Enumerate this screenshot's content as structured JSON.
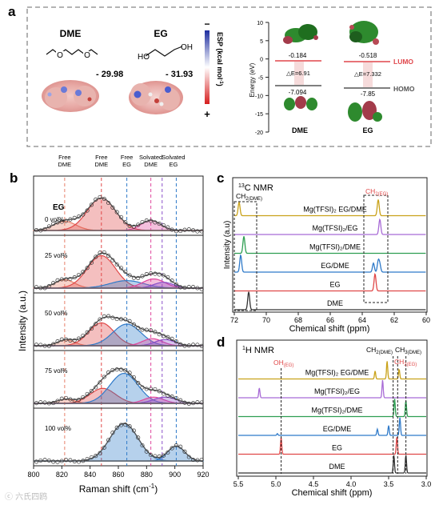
{
  "panel_a": {
    "label": "a",
    "dme_name": "DME",
    "eg_name": "EG",
    "dme_esp": "- 29.98",
    "eg_esp": "- 31.93",
    "esp_minus": "−",
    "esp_plus": "+",
    "esp_axis_label": "ESP (kcal mol",
    "esp_axis_sup": "-1",
    "esp_axis_close": ")",
    "energy_axis_label": "Energy (eV)",
    "energy_ticks": [
      "10",
      "5",
      "0",
      "-5",
      "-10",
      "-15",
      "-20"
    ],
    "dme_lumo": "-0.184",
    "eg_lumo": "-0.518",
    "dme_homo": "-7.094",
    "eg_homo": "-7.85",
    "dme_gap": "△E=6.91",
    "eg_gap": "△E=7.332",
    "lumo_label": "LUMO",
    "homo_label": "HOMO",
    "dme_label": "DME",
    "eg_label": "EG",
    "colors": {
      "lumo": "#e0474c",
      "homo": "#555555",
      "border": "#888888"
    }
  },
  "panel_b": {
    "label": "b",
    "chart_data": {
      "type": "line",
      "xlabel": "Raman shift (cm",
      "xlabel_sup": "-1",
      "xlabel_close": ")",
      "ylabel": "Intensity (a.u.)",
      "xlim": [
        800,
        920
      ],
      "x_ticks": [
        "800",
        "820",
        "840",
        "860",
        "880",
        "900",
        "920"
      ],
      "column_labels": [
        {
          "line1": "Free",
          "line2": "DME",
          "x": 822
        },
        {
          "line1": "Free",
          "line2": "DME",
          "x": 848
        },
        {
          "line1": "Free",
          "line2": "EG",
          "x": 866
        },
        {
          "line1": "Solvated",
          "line2": "DME",
          "x": 883
        },
        {
          "line1": "Solvated",
          "line2": "EG",
          "x": 899
        }
      ],
      "vlines": [
        {
          "x": 822,
          "color": "#e8806a"
        },
        {
          "x": 848,
          "color": "#e04848"
        },
        {
          "x": 866,
          "color": "#2f7ac9"
        },
        {
          "x": 883,
          "color": "#e0479d"
        },
        {
          "x": 891,
          "color": "#8a4fc9"
        },
        {
          "x": 901,
          "color": "#2f7ac9"
        }
      ],
      "legend_title": "EG",
      "series": [
        {
          "name": "0 vol%",
          "peaks": [
            {
              "c": 822,
              "h": 0.22,
              "w": 8,
              "color": "#e8806a"
            },
            {
              "c": 848,
              "h": 0.78,
              "w": 10,
              "color": "#e04848"
            },
            {
              "c": 883,
              "h": 0.24,
              "w": 7,
              "color": "#e0479d"
            }
          ]
        },
        {
          "name": "25 vol%",
          "peaks": [
            {
              "c": 822,
              "h": 0.2,
              "w": 7,
              "color": "#e8806a"
            },
            {
              "c": 848,
              "h": 0.78,
              "w": 10,
              "color": "#e04848"
            },
            {
              "c": 866,
              "h": 0.18,
              "w": 12,
              "color": "#2f7ac9"
            },
            {
              "c": 885,
              "h": 0.22,
              "w": 8,
              "color": "#e0479d"
            },
            {
              "c": 892,
              "h": 0.14,
              "w": 7,
              "color": "#8a4fc9"
            }
          ]
        },
        {
          "name": "50 vol%",
          "peaks": [
            {
              "c": 823,
              "h": 0.14,
              "w": 6,
              "color": "#e8806a"
            },
            {
              "c": 848,
              "h": 0.55,
              "w": 9,
              "color": "#e04848"
            },
            {
              "c": 866,
              "h": 0.52,
              "w": 10,
              "color": "#2f7ac9"
            },
            {
              "c": 884,
              "h": 0.17,
              "w": 7,
              "color": "#e0479d"
            },
            {
              "c": 893,
              "h": 0.15,
              "w": 7,
              "color": "#8a4fc9"
            }
          ]
        },
        {
          "name": "75 vol%",
          "peaks": [
            {
              "c": 823,
              "h": 0.1,
              "w": 6,
              "color": "#e8806a"
            },
            {
              "c": 849,
              "h": 0.36,
              "w": 9,
              "color": "#e04848"
            },
            {
              "c": 864,
              "h": 0.72,
              "w": 10,
              "color": "#2f7ac9"
            },
            {
              "c": 885,
              "h": 0.15,
              "w": 7,
              "color": "#e0479d"
            },
            {
              "c": 893,
              "h": 0.15,
              "w": 8,
              "color": "#8a4fc9"
            }
          ]
        },
        {
          "name": "100 vol%",
          "peaks": [
            {
              "c": 864,
              "h": 0.9,
              "w": 10,
              "color": "#2f7ac9"
            },
            {
              "c": 901,
              "h": 0.36,
              "w": 6,
              "color": "#2f7ac9"
            }
          ]
        }
      ]
    }
  },
  "panel_c": {
    "label": "c",
    "chart_data": {
      "type": "line",
      "title": "C NMR",
      "title_sup": "13",
      "xlabel": "Chemical shift (ppm)",
      "ylabel": "Intensity (a.u)",
      "xlim": [
        72,
        60
      ],
      "x_ticks": [
        "72",
        "70",
        "68",
        "66",
        "64",
        "62",
        "60"
      ],
      "box_label_left": "CH",
      "box_label_left_sub": "2(DME)",
      "box_label_right": "CH",
      "box_label_right_sub": "2(EG)",
      "series": [
        {
          "name": "Mg(TFSI)₂ EG/DME",
          "color": "#c9a21a",
          "peaks": [
            {
              "c": 71.7,
              "h": 0.75
            },
            {
              "c": 63.0,
              "h": 0.9
            }
          ]
        },
        {
          "name": "Mg(TFSI)₂/EG",
          "color": "#a86bd6",
          "peaks": [
            {
              "c": 62.9,
              "h": 0.85
            }
          ]
        },
        {
          "name": "Mg(TFSI)₂/DME",
          "color": "#2e9e52",
          "peaks": [
            {
              "c": 71.4,
              "h": 0.95
            }
          ]
        },
        {
          "name": "EG/DME",
          "color": "#2f7ac9",
          "peaks": [
            {
              "c": 71.6,
              "h": 0.95
            },
            {
              "c": 63.3,
              "h": 0.5
            },
            {
              "c": 63.0,
              "h": 0.6
            },
            {
              "c": 62.9,
              "h": 0.4
            }
          ]
        },
        {
          "name": "EG",
          "color": "#e04848",
          "peaks": [
            {
              "c": 63.2,
              "h": 0.95
            }
          ]
        },
        {
          "name": "DME",
          "color": "#333333",
          "peaks": [
            {
              "c": 71.1,
              "h": 1.0
            }
          ]
        }
      ]
    }
  },
  "panel_d": {
    "label": "d",
    "chart_data": {
      "type": "line",
      "title": "H NMR",
      "title_sup": "1",
      "xlabel": "Chemical shift (ppm)",
      "xlim": [
        5.5,
        3.0
      ],
      "x_ticks": [
        "5.5",
        "5.0",
        "4.5",
        "4.0",
        "3.5",
        "3.0"
      ],
      "oh_label": "OH",
      "oh_sub": "(EG)",
      "ch2dme_label": "CH",
      "ch2dme_sub": "2(DME)",
      "ch3dme_label": "CH",
      "ch3dme_sub": "3(DME)",
      "ch2eg_label": "CH",
      "ch2eg_sub": "2(EG)",
      "series": [
        {
          "name": "Mg(TFSI)₂ EG/DME",
          "color": "#c9a21a",
          "peaks": [
            {
              "c": 3.68,
              "h": 0.45
            },
            {
              "c": 3.52,
              "h": 1.0
            },
            {
              "c": 3.36,
              "h": 0.55
            }
          ]
        },
        {
          "name": "Mg(TFSI)₂/EG",
          "color": "#a86bd6",
          "peaks": [
            {
              "c": 5.22,
              "h": 0.55
            },
            {
              "c": 3.58,
              "h": 1.0
            }
          ]
        },
        {
          "name": "Mg(TFSI)₂/DME",
          "color": "#2e9e52",
          "peaks": [
            {
              "c": 3.42,
              "h": 1.0
            },
            {
              "c": 3.27,
              "h": 0.9
            }
          ]
        },
        {
          "name": "EG/DME",
          "color": "#2f7ac9",
          "peaks": [
            {
              "c": 4.98,
              "h": 0.1
            },
            {
              "c": 3.65,
              "h": 0.35
            },
            {
              "c": 3.5,
              "h": 0.55
            },
            {
              "c": 3.35,
              "h": 1.0
            }
          ]
        },
        {
          "name": "EG",
          "color": "#e04848",
          "peaks": [
            {
              "c": 4.93,
              "h": 0.95
            },
            {
              "c": 3.39,
              "h": 1.0
            }
          ]
        },
        {
          "name": "DME",
          "color": "#333333",
          "peaks": [
            {
              "c": 3.43,
              "h": 1.0
            },
            {
              "c": 3.27,
              "h": 1.0
            }
          ]
        }
      ]
    }
  },
  "watermark": "ⓒ 六氏四鸥"
}
